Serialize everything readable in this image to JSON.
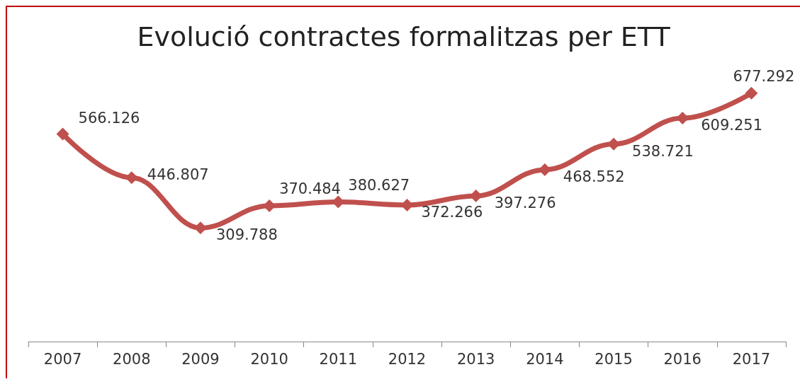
{
  "chart_data": {
    "type": "line",
    "title": "Evolució contractes formalitzas per ETT",
    "categories": [
      "2007",
      "2008",
      "2009",
      "2010",
      "2011",
      "2012",
      "2013",
      "2014",
      "2015",
      "2016",
      "2017"
    ],
    "series": [
      {
        "color": "#c0504d",
        "values": [
          566126,
          446807,
          309788,
          370484,
          380627,
          372266,
          397276,
          468552,
          538721,
          609251,
          677292
        ],
        "value_labels": [
          "566.126",
          "446.807",
          "309.788",
          "370.484",
          "380.627",
          "372.266",
          "397.276",
          "468.552",
          "538.721",
          "609.251",
          "677.292"
        ]
      }
    ],
    "marker": "diamond",
    "line_style": "solid",
    "grid": false
  }
}
